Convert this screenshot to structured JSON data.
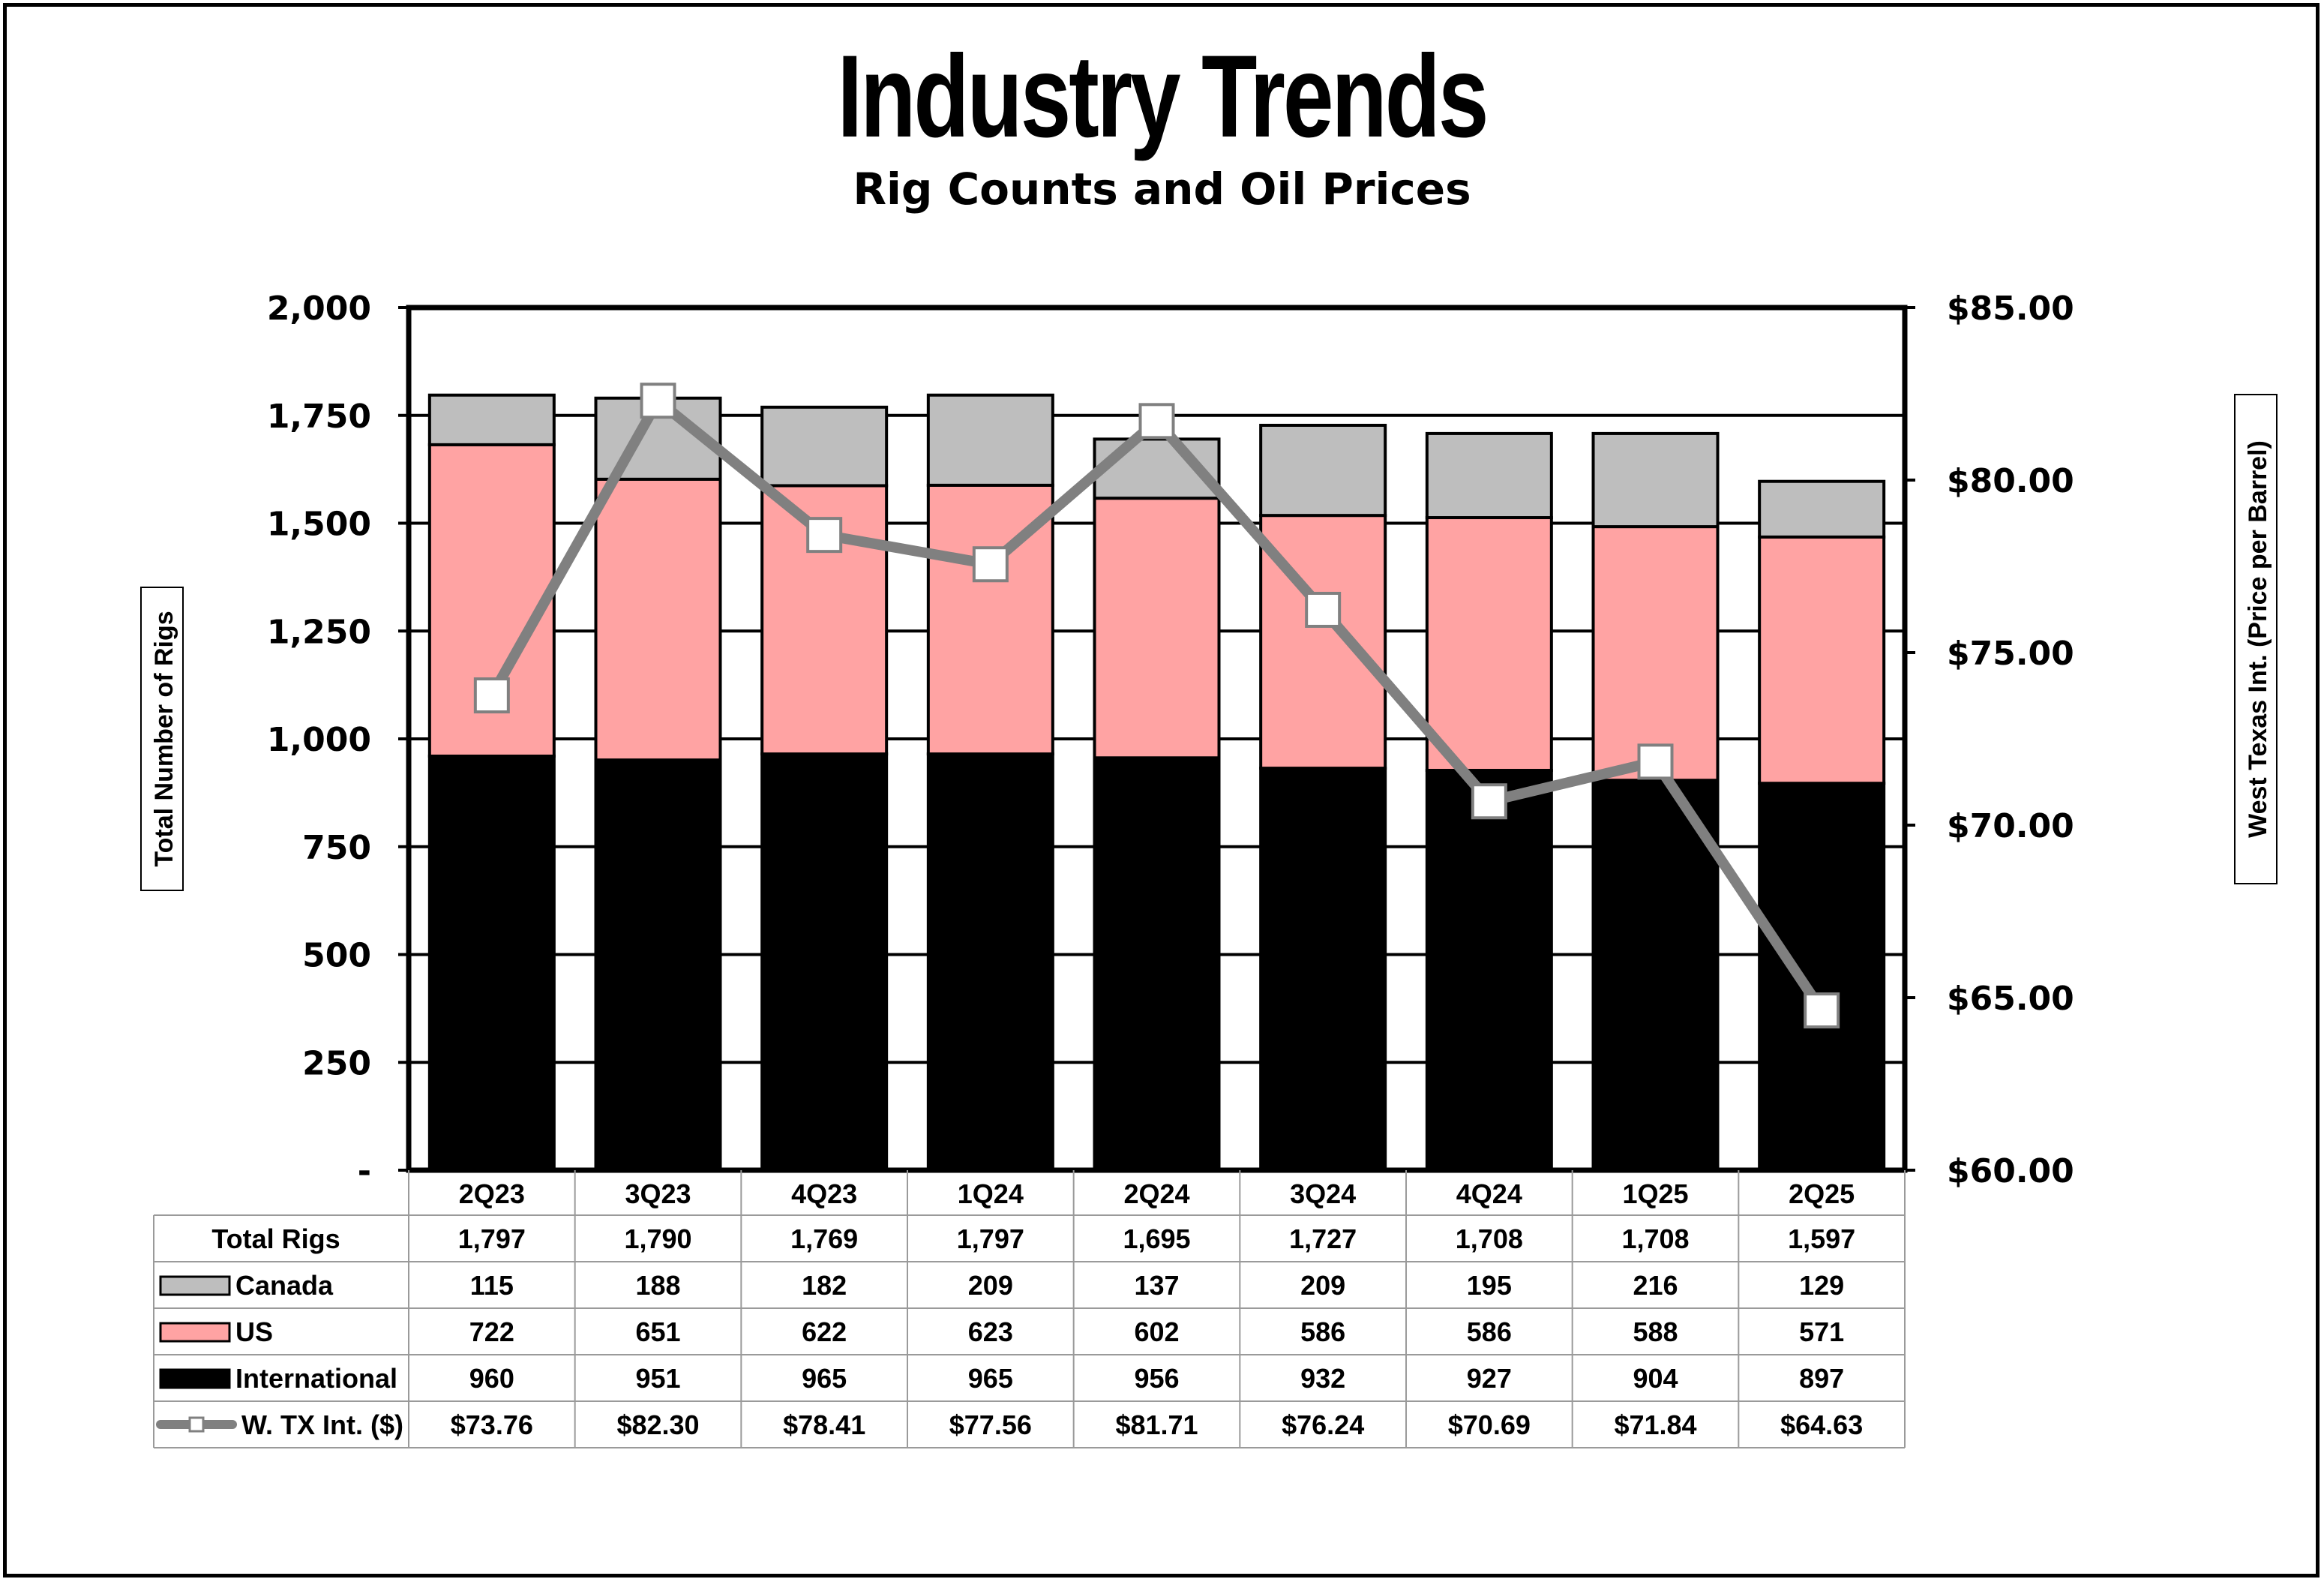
{
  "title": "Industry Trends",
  "subtitle": "Rig Counts and Oil Prices",
  "chart_data": {
    "type": "bar",
    "stacked": true,
    "categories": [
      "2Q23",
      "3Q23",
      "4Q23",
      "1Q24",
      "2Q24",
      "3Q24",
      "4Q24",
      "1Q25",
      "2Q25"
    ],
    "series": [
      {
        "name": "International",
        "values": [
          960,
          951,
          965,
          965,
          956,
          932,
          927,
          904,
          897
        ],
        "color": "#000000"
      },
      {
        "name": "US",
        "values": [
          722,
          651,
          622,
          623,
          602,
          586,
          586,
          588,
          571
        ],
        "color": "#ffa3a3"
      },
      {
        "name": "Canada",
        "values": [
          115,
          188,
          182,
          209,
          137,
          209,
          195,
          216,
          129
        ],
        "color": "#bebebe"
      }
    ],
    "line_series": {
      "name": "W. TX Int. ($)",
      "axis": "right",
      "values": [
        73.76,
        82.3,
        78.41,
        77.56,
        81.71,
        76.24,
        70.69,
        71.84,
        64.63
      ],
      "color": "#808080"
    },
    "ylabel": "Total Number of Rigs",
    "ylabel_right": "West Texas Int. (Price per Barrel)",
    "ylim": [
      0,
      2000
    ],
    "ylim_right": [
      60,
      85
    ],
    "yticks": [
      "-",
      "250",
      "500",
      "750",
      "1,000",
      "1,250",
      "1,500",
      "1,750",
      "2,000"
    ],
    "yticks_right": [
      "$60.00",
      "$65.00",
      "$70.00",
      "$75.00",
      "$80.00",
      "$85.00"
    ],
    "grid": true,
    "table": {
      "total_label": "Total Rigs",
      "totals": [
        "1,797",
        "1,790",
        "1,769",
        "1,797",
        "1,695",
        "1,727",
        "1,708",
        "1,708",
        "1,597"
      ],
      "canada_label": "Canada",
      "canada": [
        "115",
        "188",
        "182",
        "209",
        "137",
        "209",
        "195",
        "216",
        "129"
      ],
      "us_label": "US",
      "us": [
        "722",
        "651",
        "622",
        "623",
        "602",
        "586",
        "586",
        "588",
        "571"
      ],
      "intl_label": "International",
      "intl": [
        "960",
        "951",
        "965",
        "965",
        "956",
        "932",
        "927",
        "904",
        "897"
      ],
      "wti_label": "W. TX Int. ($)",
      "wti": [
        "$73.76",
        "$82.30",
        "$78.41",
        "$77.56",
        "$81.71",
        "$76.24",
        "$70.69",
        "$71.84",
        "$64.63"
      ]
    }
  }
}
